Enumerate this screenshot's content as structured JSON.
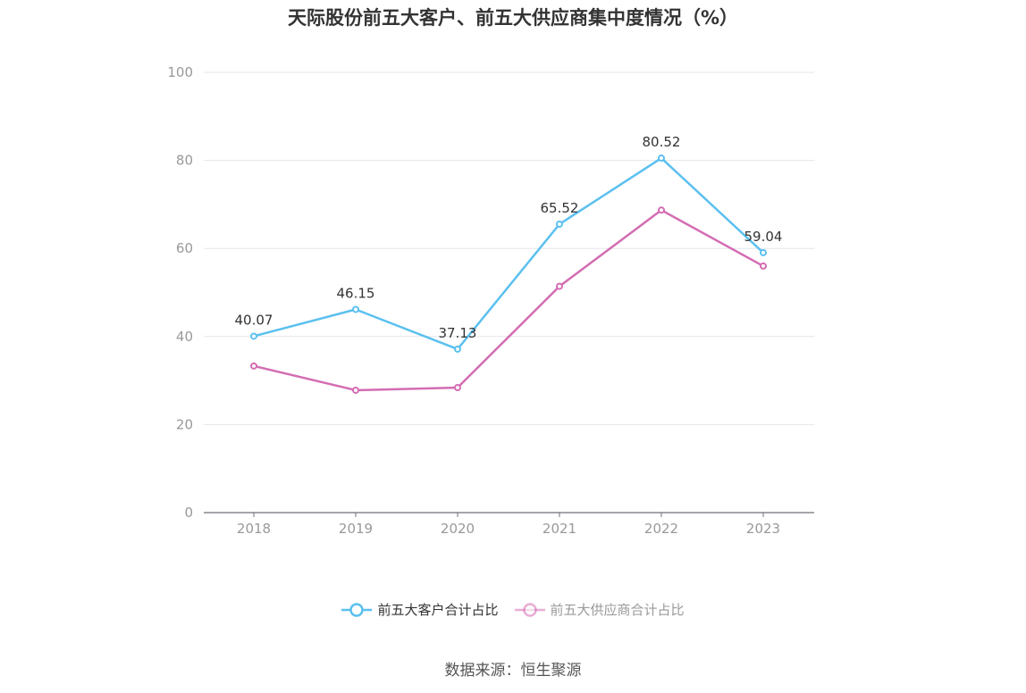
{
  "chart_data": {
    "type": "line",
    "title": "天际股份前五大客户、前五大供应商集中度情况（%）",
    "categories": [
      "2018",
      "2019",
      "2020",
      "2021",
      "2022",
      "2023"
    ],
    "ylim": [
      0,
      100
    ],
    "yticks": [
      0,
      20,
      40,
      60,
      80,
      100
    ],
    "grid": true,
    "legend_position": "bottom",
    "series": [
      {
        "name": "前五大客户合计占比",
        "values": [
          40.07,
          46.15,
          37.13,
          65.52,
          80.52,
          59.04
        ],
        "labels": [
          "40.07",
          "46.15",
          "37.13",
          "65.52",
          "80.52",
          "59.04"
        ],
        "color": "#5bc0ef"
      },
      {
        "name": "前五大供应商合计占比",
        "values": [
          33.3,
          27.8,
          28.4,
          51.4,
          68.7,
          56.0
        ],
        "labels": [],
        "color": "#d46cb3"
      }
    ]
  },
  "source": "数据来源：恒生聚源"
}
